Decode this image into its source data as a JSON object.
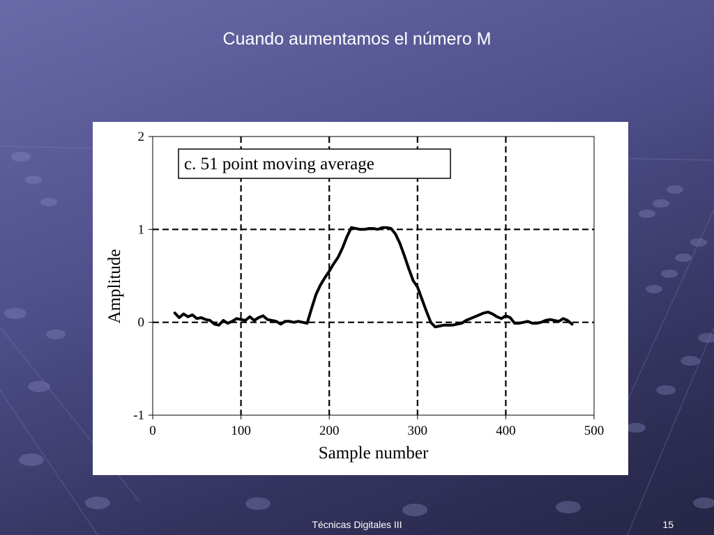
{
  "slide": {
    "title": "Cuando aumentamos el número M",
    "footer": "Técnicas Digitales III",
    "page_number": "15"
  },
  "colors": {
    "background_top": "#6a6aa8",
    "background_bottom": "#252545",
    "text": "#ffffff"
  },
  "chart_data": {
    "type": "line",
    "annotation": "c.   51 point moving average",
    "xlabel": "Sample number",
    "ylabel": "Amplitude",
    "xlim": [
      0,
      500
    ],
    "ylim": [
      -1,
      2
    ],
    "x_ticks": [
      "0",
      "100",
      "200",
      "300",
      "400",
      "500"
    ],
    "y_ticks": [
      "-1",
      "0",
      "1",
      "2"
    ],
    "grid": "dashed",
    "series": [
      {
        "x": [
          25,
          30,
          35,
          40,
          45,
          50,
          55,
          60,
          65,
          70,
          75,
          80,
          85,
          90,
          95,
          100,
          105,
          110,
          115,
          120,
          125,
          130,
          135,
          140,
          145,
          150,
          155,
          160,
          165,
          170,
          175,
          180,
          185,
          190,
          195,
          200,
          205,
          210,
          215,
          220,
          225,
          230,
          235,
          240,
          245,
          250,
          255,
          260,
          265,
          270,
          275,
          280,
          285,
          290,
          295,
          300,
          305,
          310,
          315,
          320,
          325,
          330,
          335,
          340,
          345,
          350,
          355,
          360,
          365,
          370,
          375,
          380,
          385,
          390,
          395,
          400,
          405,
          410,
          415,
          420,
          425,
          430,
          435,
          440,
          445,
          450,
          455,
          460,
          465,
          470,
          475
        ],
        "values": [
          0.1,
          0.05,
          0.09,
          0.06,
          0.08,
          0.04,
          0.05,
          0.03,
          0.02,
          -0.02,
          -0.03,
          0.02,
          -0.01,
          0.01,
          0.04,
          0.03,
          0.02,
          0.06,
          0.02,
          0.05,
          0.07,
          0.03,
          0.02,
          0.01,
          -0.02,
          0.01,
          0.01,
          0.0,
          0.01,
          0.0,
          -0.01,
          0.15,
          0.3,
          0.4,
          0.48,
          0.55,
          0.63,
          0.7,
          0.8,
          0.92,
          1.02,
          1.01,
          1.0,
          1.0,
          1.01,
          1.01,
          1.0,
          1.02,
          1.02,
          1.01,
          0.95,
          0.85,
          0.72,
          0.58,
          0.45,
          0.38,
          0.25,
          0.12,
          0.0,
          -0.05,
          -0.04,
          -0.03,
          -0.03,
          -0.03,
          -0.02,
          -0.01,
          0.02,
          0.04,
          0.06,
          0.08,
          0.1,
          0.11,
          0.09,
          0.06,
          0.04,
          0.07,
          0.05,
          -0.01,
          -0.01,
          0.0,
          0.01,
          -0.01,
          -0.01,
          0.0,
          0.02,
          0.03,
          0.02,
          0.01,
          0.04,
          0.02,
          -0.02
        ]
      }
    ]
  }
}
